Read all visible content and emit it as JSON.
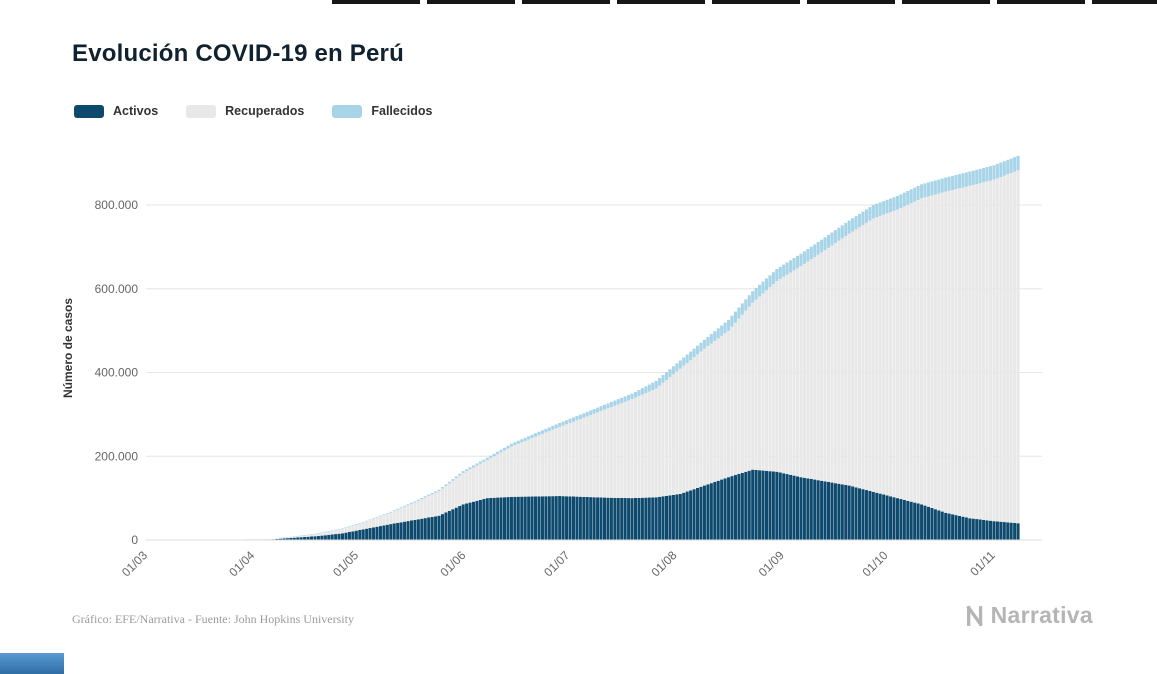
{
  "page": {
    "title": "Evolución COVID-19 en Perú"
  },
  "footer": {
    "attribution": "Gráfico: EFE/Narrativa - Fuente: John Hopkins University",
    "logo_text": "Narrativa"
  },
  "colors": {
    "activos": "#0e4a6e",
    "recuperados": "#e8e8e8",
    "fallecidos": "#a8d4e8",
    "grid": "#e6e6e6",
    "axis_text": "#666666",
    "logo": "#b5b5b5"
  },
  "chart_data": {
    "type": "bar",
    "stacked": true,
    "title": "Evolución COVID-19 en Perú",
    "xlabel": "",
    "ylabel": "Número de casos",
    "ylim": [
      0,
      950000
    ],
    "grid": true,
    "legend_position": "top-left",
    "yticks": [
      0,
      200000,
      400000,
      600000,
      800000
    ],
    "ytick_labels": [
      "0",
      "200.000",
      "400.000",
      "600.000",
      "800.000"
    ],
    "xticks": [
      {
        "label": "01/03",
        "day": 0
      },
      {
        "label": "01/04",
        "day": 31
      },
      {
        "label": "01/05",
        "day": 61
      },
      {
        "label": "01/06",
        "day": 92
      },
      {
        "label": "01/07",
        "day": 122
      },
      {
        "label": "01/08",
        "day": 153
      },
      {
        "label": "01/09",
        "day": 184
      },
      {
        "label": "01/10",
        "day": 214
      },
      {
        "label": "01/11",
        "day": 245
      }
    ],
    "total_days": 252,
    "dates": [
      "01/03",
      "08/03",
      "15/03",
      "22/03",
      "29/03",
      "05/04",
      "12/04",
      "19/04",
      "26/04",
      "03/05",
      "10/05",
      "17/05",
      "24/05",
      "31/05",
      "07/06",
      "14/06",
      "21/06",
      "28/06",
      "05/07",
      "12/07",
      "19/07",
      "26/07",
      "02/08",
      "09/08",
      "16/08",
      "23/08",
      "30/08",
      "06/09",
      "13/09",
      "20/09",
      "27/09",
      "04/10",
      "11/10",
      "18/10",
      "25/10",
      "01/11",
      "08/11"
    ],
    "days": [
      0,
      7,
      14,
      21,
      28,
      35,
      42,
      49,
      56,
      63,
      70,
      77,
      84,
      91,
      98,
      105,
      112,
      119,
      126,
      133,
      140,
      147,
      154,
      161,
      168,
      175,
      182,
      189,
      196,
      203,
      210,
      217,
      224,
      231,
      238,
      245,
      252
    ],
    "series": [
      {
        "name": "Activos",
        "color": "#0e4a6e",
        "values": [
          0,
          10,
          42,
          340,
          700,
          1200,
          5500,
          9500,
          16000,
          27000,
          38000,
          48000,
          58000,
          85000,
          100000,
          103000,
          104000,
          105000,
          103000,
          101000,
          100000,
          102000,
          110000,
          130000,
          150000,
          168000,
          163000,
          150000,
          140000,
          130000,
          115000,
          100000,
          85000,
          65000,
          52000,
          45000,
          40000
        ]
      },
      {
        "name": "Recuperados",
        "color": "#e8e8e8",
        "values": [
          0,
          0,
          1,
          18,
          134,
          473,
          1826,
          5728,
          10789,
          17642,
          27418,
          41708,
          58503,
          74970,
          91050,
          120048,
          142891,
          165102,
          189129,
          213377,
          236502,
          259854,
          299236,
          326952,
          349728,
          398873,
          455378,
          504015,
          552306,
          601496,
          653000,
          688955,
          731066,
          766847,
          793727,
          815517,
          842720
        ]
      },
      {
        "name": "Fallecidos",
        "color": "#a8d4e8",
        "values": [
          0,
          0,
          0,
          5,
          18,
          73,
          193,
          400,
          728,
          1286,
          1889,
          2789,
          3456,
          4506,
          5465,
          6688,
          8045,
          9317,
          10589,
          11870,
          12998,
          18030,
          19614,
          21072,
          26075,
          27453,
          28788,
          29687,
          30526,
          31369,
          32142,
          32609,
          33305,
          33702,
          34149,
          34411,
          34783
        ]
      }
    ]
  }
}
